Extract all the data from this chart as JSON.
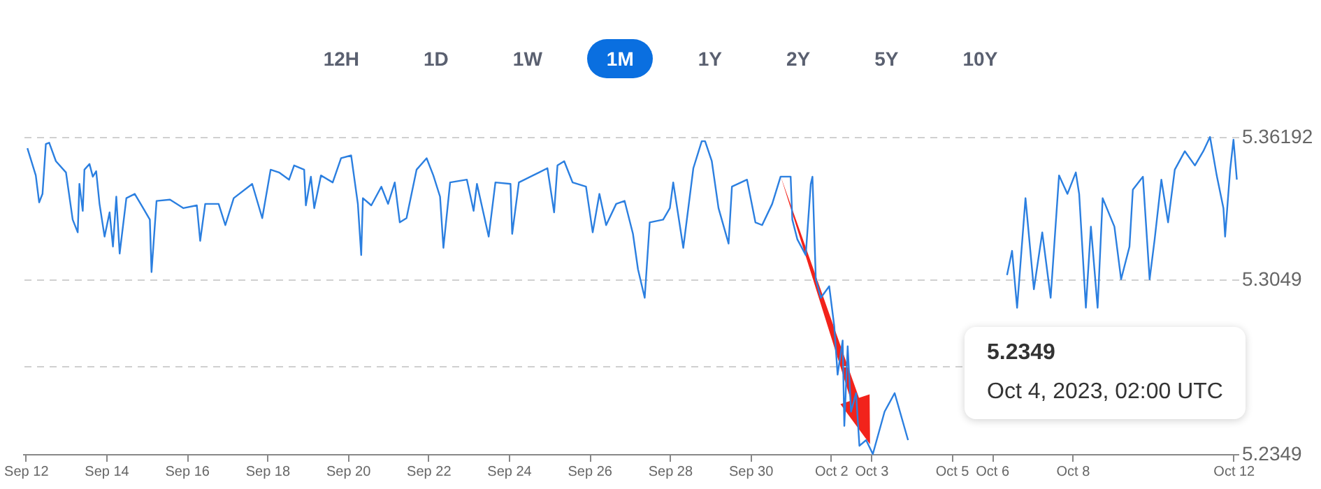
{
  "chart_data": {
    "type": "line",
    "color": "#2b7fe0",
    "marker": "none",
    "line_style": "solid",
    "grid": "y",
    "annotations": [
      "12H",
      "1D",
      "1W",
      "1M",
      "1Y",
      "2Y",
      "5Y",
      "10Y",
      "5.2349",
      "Oct 4, 2023, 02:00 UTC"
    ],
    "xlim": [
      "2023-09-11T22:00",
      "2023-10-12T03:00"
    ],
    "xticks": [
      {
        "value": "2023-09-12",
        "label": "Sep 12"
      },
      {
        "value": "2023-09-14",
        "label": "Sep 14"
      },
      {
        "value": "2023-09-16",
        "label": "Sep 16"
      },
      {
        "value": "2023-09-18",
        "label": "Sep 18"
      },
      {
        "value": "2023-09-20",
        "label": "Sep 20"
      },
      {
        "value": "2023-09-22",
        "label": "Sep 22"
      },
      {
        "value": "2023-09-24",
        "label": "Sep 24"
      },
      {
        "value": "2023-09-26",
        "label": "Sep 26"
      },
      {
        "value": "2023-09-28",
        "label": "Sep 28"
      },
      {
        "value": "2023-09-30",
        "label": "Sep 30"
      },
      {
        "value": "2023-10-02",
        "label": "Oct 2"
      },
      {
        "value": "2023-10-03",
        "label": "Oct 3"
      },
      {
        "value": "2023-10-05",
        "label": "Oct 5"
      },
      {
        "value": "2023-10-06",
        "label": "Oct 6"
      },
      {
        "value": "2023-10-08",
        "label": "Oct 8"
      },
      {
        "value": "2023-10-12",
        "label": "Oct 12"
      }
    ],
    "ylim": [
      5.2349,
      5.36192
    ],
    "yticks": [
      5.2349,
      {
        "value": 5.2699,
        "label": null
      },
      5.3049,
      5.36192
    ],
    "x": [
      "2023-09-12T01:00",
      "2023-09-12T06:00",
      "2023-09-12T08:00",
      "2023-09-12T10:00",
      "2023-09-12T12:00",
      "2023-09-12T14:00",
      "2023-09-12T18:00",
      "2023-09-13T00:00",
      "2023-09-13T04:00",
      "2023-09-13T07:00",
      "2023-09-13T08:00",
      "2023-09-13T10:00",
      "2023-09-13T11:00",
      "2023-09-13T14:00",
      "2023-09-13T16:00",
      "2023-09-13T18:00",
      "2023-09-13T20:00",
      "2023-09-13T23:00",
      "2023-09-14T02:00",
      "2023-09-14T04:00",
      "2023-09-14T06:00",
      "2023-09-14T08:00",
      "2023-09-14T12:00",
      "2023-09-14T17:00",
      "2023-09-14T22:00",
      "2023-09-15T02:00",
      "2023-09-15T03:00",
      "2023-09-15T06:00",
      "2023-09-15T14:00",
      "2023-09-15T22:00",
      "2023-09-16T06:00",
      "2023-09-16T08:00",
      "2023-09-16T11:00",
      "2023-09-16T19:00",
      "2023-09-16T23:00",
      "2023-09-17T04:00",
      "2023-09-17T15:00",
      "2023-09-17T21:00",
      "2023-09-18T02:00",
      "2023-09-18T07:00",
      "2023-09-18T13:00",
      "2023-09-18T16:00",
      "2023-09-18T22:00",
      "2023-09-18T23:00",
      "2023-09-19T02:00",
      "2023-09-19T04:00",
      "2023-09-19T08:00",
      "2023-09-19T15:00",
      "2023-09-19T20:00",
      "2023-09-20T02:00",
      "2023-09-20T06:00",
      "2023-09-20T08:00",
      "2023-09-20T09:00",
      "2023-09-20T14:00",
      "2023-09-20T20:00",
      "2023-09-21T00:00",
      "2023-09-21T04:00",
      "2023-09-21T07:00",
      "2023-09-21T11:00",
      "2023-09-21T17:00",
      "2023-09-21T23:00",
      "2023-09-22T03:00",
      "2023-09-22T07:00",
      "2023-09-22T09:00",
      "2023-09-22T13:00",
      "2023-09-22T23:00",
      "2023-09-23T03:00",
      "2023-09-23T05:00",
      "2023-09-23T12:00",
      "2023-09-23T16:00",
      "2023-09-24T01:00",
      "2023-09-24T02:00",
      "2023-09-24T06:00",
      "2023-09-24T18:00",
      "2023-09-24T23:00",
      "2023-09-25T03:00",
      "2023-09-25T05:00",
      "2023-09-25T09:00",
      "2023-09-25T14:00",
      "2023-09-25T22:00",
      "2023-09-26T02:00",
      "2023-09-26T06:00",
      "2023-09-26T10:00",
      "2023-09-26T16:00",
      "2023-09-26T21:00",
      "2023-09-27T02:00",
      "2023-09-27T05:00",
      "2023-09-27T09:00",
      "2023-09-27T12:00",
      "2023-09-27T20:00",
      "2023-09-28T00:00",
      "2023-09-28T02:00",
      "2023-09-28T08:00",
      "2023-09-28T14:00",
      "2023-09-28T19:00",
      "2023-09-28T21:00",
      "2023-09-29T01:00",
      "2023-09-29T05:00",
      "2023-09-29T11:00",
      "2023-09-29T13:00",
      "2023-09-29T22:00",
      "2023-09-30T03:00",
      "2023-09-30T07:00",
      "2023-09-30T13:00",
      "2023-09-30T18:00",
      "2023-10-01T00:00",
      "2023-10-01T01:00",
      "2023-10-01T04:00",
      "2023-10-01T09:00",
      "2023-10-01T12:00",
      "2023-10-01T13:00",
      "2023-10-01T15:00",
      "2023-10-01T18:00",
      "2023-10-01T23:00",
      "2023-10-02T02:00",
      "2023-10-02T04:00",
      "2023-10-02T07:00",
      "2023-10-02T08:00",
      "2023-10-02T10:00",
      "2023-10-02T12:00",
      "2023-10-02T15:00",
      "2023-10-02T17:00",
      "2023-10-02T21:00",
      "2023-10-03T01:00",
      "2023-10-03T08:00",
      "2023-10-03T14:00",
      "2023-10-03T22:00",
      "2023-10-04T12:00",
      "2023-10-05T12:00",
      "2023-10-06T09:00",
      "2023-10-06T12:00",
      "2023-10-06T15:00",
      "2023-10-06T20:00",
      "2023-10-07T01:00",
      "2023-10-07T06:00",
      "2023-10-07T11:00",
      "2023-10-07T16:00",
      "2023-10-07T21:00",
      "2023-10-08T02:00",
      "2023-10-08T04:00",
      "2023-10-08T08:00",
      "2023-10-08T11:00",
      "2023-10-08T15:00",
      "2023-10-08T18:00",
      "2023-10-09T01:00",
      "2023-10-09T05:00",
      "2023-10-09T10:00",
      "2023-10-09T12:00",
      "2023-10-09T18:00",
      "2023-10-09T22:00",
      "2023-10-10T01:00",
      "2023-10-10T05:00",
      "2023-10-10T09:00",
      "2023-10-10T13:00",
      "2023-10-10T19:00",
      "2023-10-11T01:00",
      "2023-10-11T06:00",
      "2023-10-11T10:00",
      "2023-10-11T14:00",
      "2023-10-11T18:00",
      "2023-10-11T19:00",
      "2023-10-11T22:00",
      "2023-10-12T00:00",
      "2023-10-12T02:00"
    ],
    "values": [
      5.3574,
      5.3465,
      5.3357,
      5.3391,
      5.3591,
      5.3596,
      5.3522,
      5.3477,
      5.3288,
      5.3237,
      5.3431,
      5.3323,
      5.3488,
      5.3511,
      5.346,
      5.3482,
      5.3351,
      5.322,
      5.3317,
      5.318,
      5.338,
      5.3152,
      5.3374,
      5.3391,
      5.3334,
      5.3288,
      5.3078,
      5.3363,
      5.3368,
      5.3334,
      5.3345,
      5.3203,
      5.3351,
      5.3351,
      5.3266,
      5.3374,
      5.3431,
      5.3294,
      5.3488,
      5.3477,
      5.3448,
      5.3505,
      5.3488,
      5.3345,
      5.346,
      5.3334,
      5.3465,
      5.3437,
      5.3534,
      5.3545,
      5.3351,
      5.3146,
      5.3374,
      5.3345,
      5.342,
      5.3351,
      5.3437,
      5.3277,
      5.3294,
      5.3488,
      5.3534,
      5.3465,
      5.338,
      5.3175,
      5.3437,
      5.3448,
      5.3323,
      5.3431,
      5.322,
      5.3437,
      5.3431,
      5.3231,
      5.3437,
      5.3477,
      5.3494,
      5.3317,
      5.3505,
      5.3522,
      5.3437,
      5.342,
      5.3237,
      5.3391,
      5.3266,
      5.3351,
      5.3363,
      5.3231,
      5.3089,
      5.2975,
      5.3277,
      5.3288,
      5.3334,
      5.3437,
      5.3175,
      5.3494,
      5.3602,
      5.3602,
      5.3522,
      5.3334,
      5.3192,
      5.342,
      5.3448,
      5.3277,
      5.3266,
      5.3351,
      5.346,
      5.346,
      5.3288,
      5.3209,
      5.3146,
      5.3431,
      5.346,
      5.3049,
      5.2975,
      5.3021,
      5.2861,
      5.2667,
      5.2804,
      5.2462,
      5.2781,
      5.2519,
      5.2593,
      5.2382,
      5.2405,
      5.2349,
      5.2519,
      5.2593,
      5.2405,
      null,
      null,
      5.3066,
      5.3163,
      5.2935,
      5.3374,
      5.3009,
      5.3237,
      5.2975,
      5.3465,
      5.3391,
      5.3477,
      5.3391,
      5.2935,
      5.326,
      5.2935,
      5.3374,
      5.326,
      5.3049,
      5.318,
      5.3408,
      5.346,
      5.3049,
      5.3209,
      5.3448,
      5.3277,
      5.3488,
      5.3562,
      5.3505,
      5.3562,
      5.3619,
      5.3465,
      5.3334,
      5.322,
      5.3488,
      5.3608,
      5.3448
    ]
  }
}
